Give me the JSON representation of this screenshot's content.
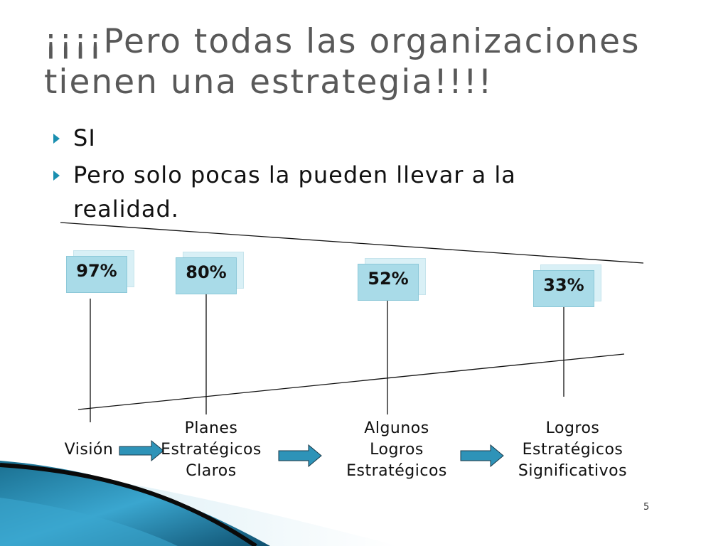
{
  "slide": {
    "title": "¡¡¡¡Pero todas las organizaciones tienen una estrategia!!!!",
    "bullets": [
      "SI",
      "Pero solo pocas la pueden llevar a  la realidad."
    ],
    "page_number": "5"
  },
  "chart_data": {
    "type": "funnel",
    "categories": [
      "Visión",
      "Planes Estratégicos Claros",
      "Algunos Logros Estratégicos",
      "Logros Estratégicos Significativos"
    ],
    "values": [
      97,
      80,
      52,
      33
    ],
    "value_labels": [
      "97%",
      "80%",
      "52%",
      "33%"
    ],
    "unit": "%"
  },
  "stages": [
    {
      "label_lines": [
        "Visión"
      ],
      "value_label": "97%"
    },
    {
      "label_lines": [
        "Planes",
        "Estratégicos",
        "Claros"
      ],
      "value_label": "80%"
    },
    {
      "label_lines": [
        "Algunos",
        "Logros",
        "Estratégicos"
      ],
      "value_label": "52%"
    },
    {
      "label_lines": [
        "Logros",
        "Estratégicos",
        "Significativos"
      ],
      "value_label": "33%"
    }
  ],
  "colors": {
    "accent": "#1a8fb0",
    "box_fill": "#a9dbe8",
    "arrow_fill": "#2e93b8",
    "title": "#595959"
  },
  "icons": {
    "bullet_marker": "triangle-right-icon",
    "stage_arrow": "arrow-right-icon"
  }
}
